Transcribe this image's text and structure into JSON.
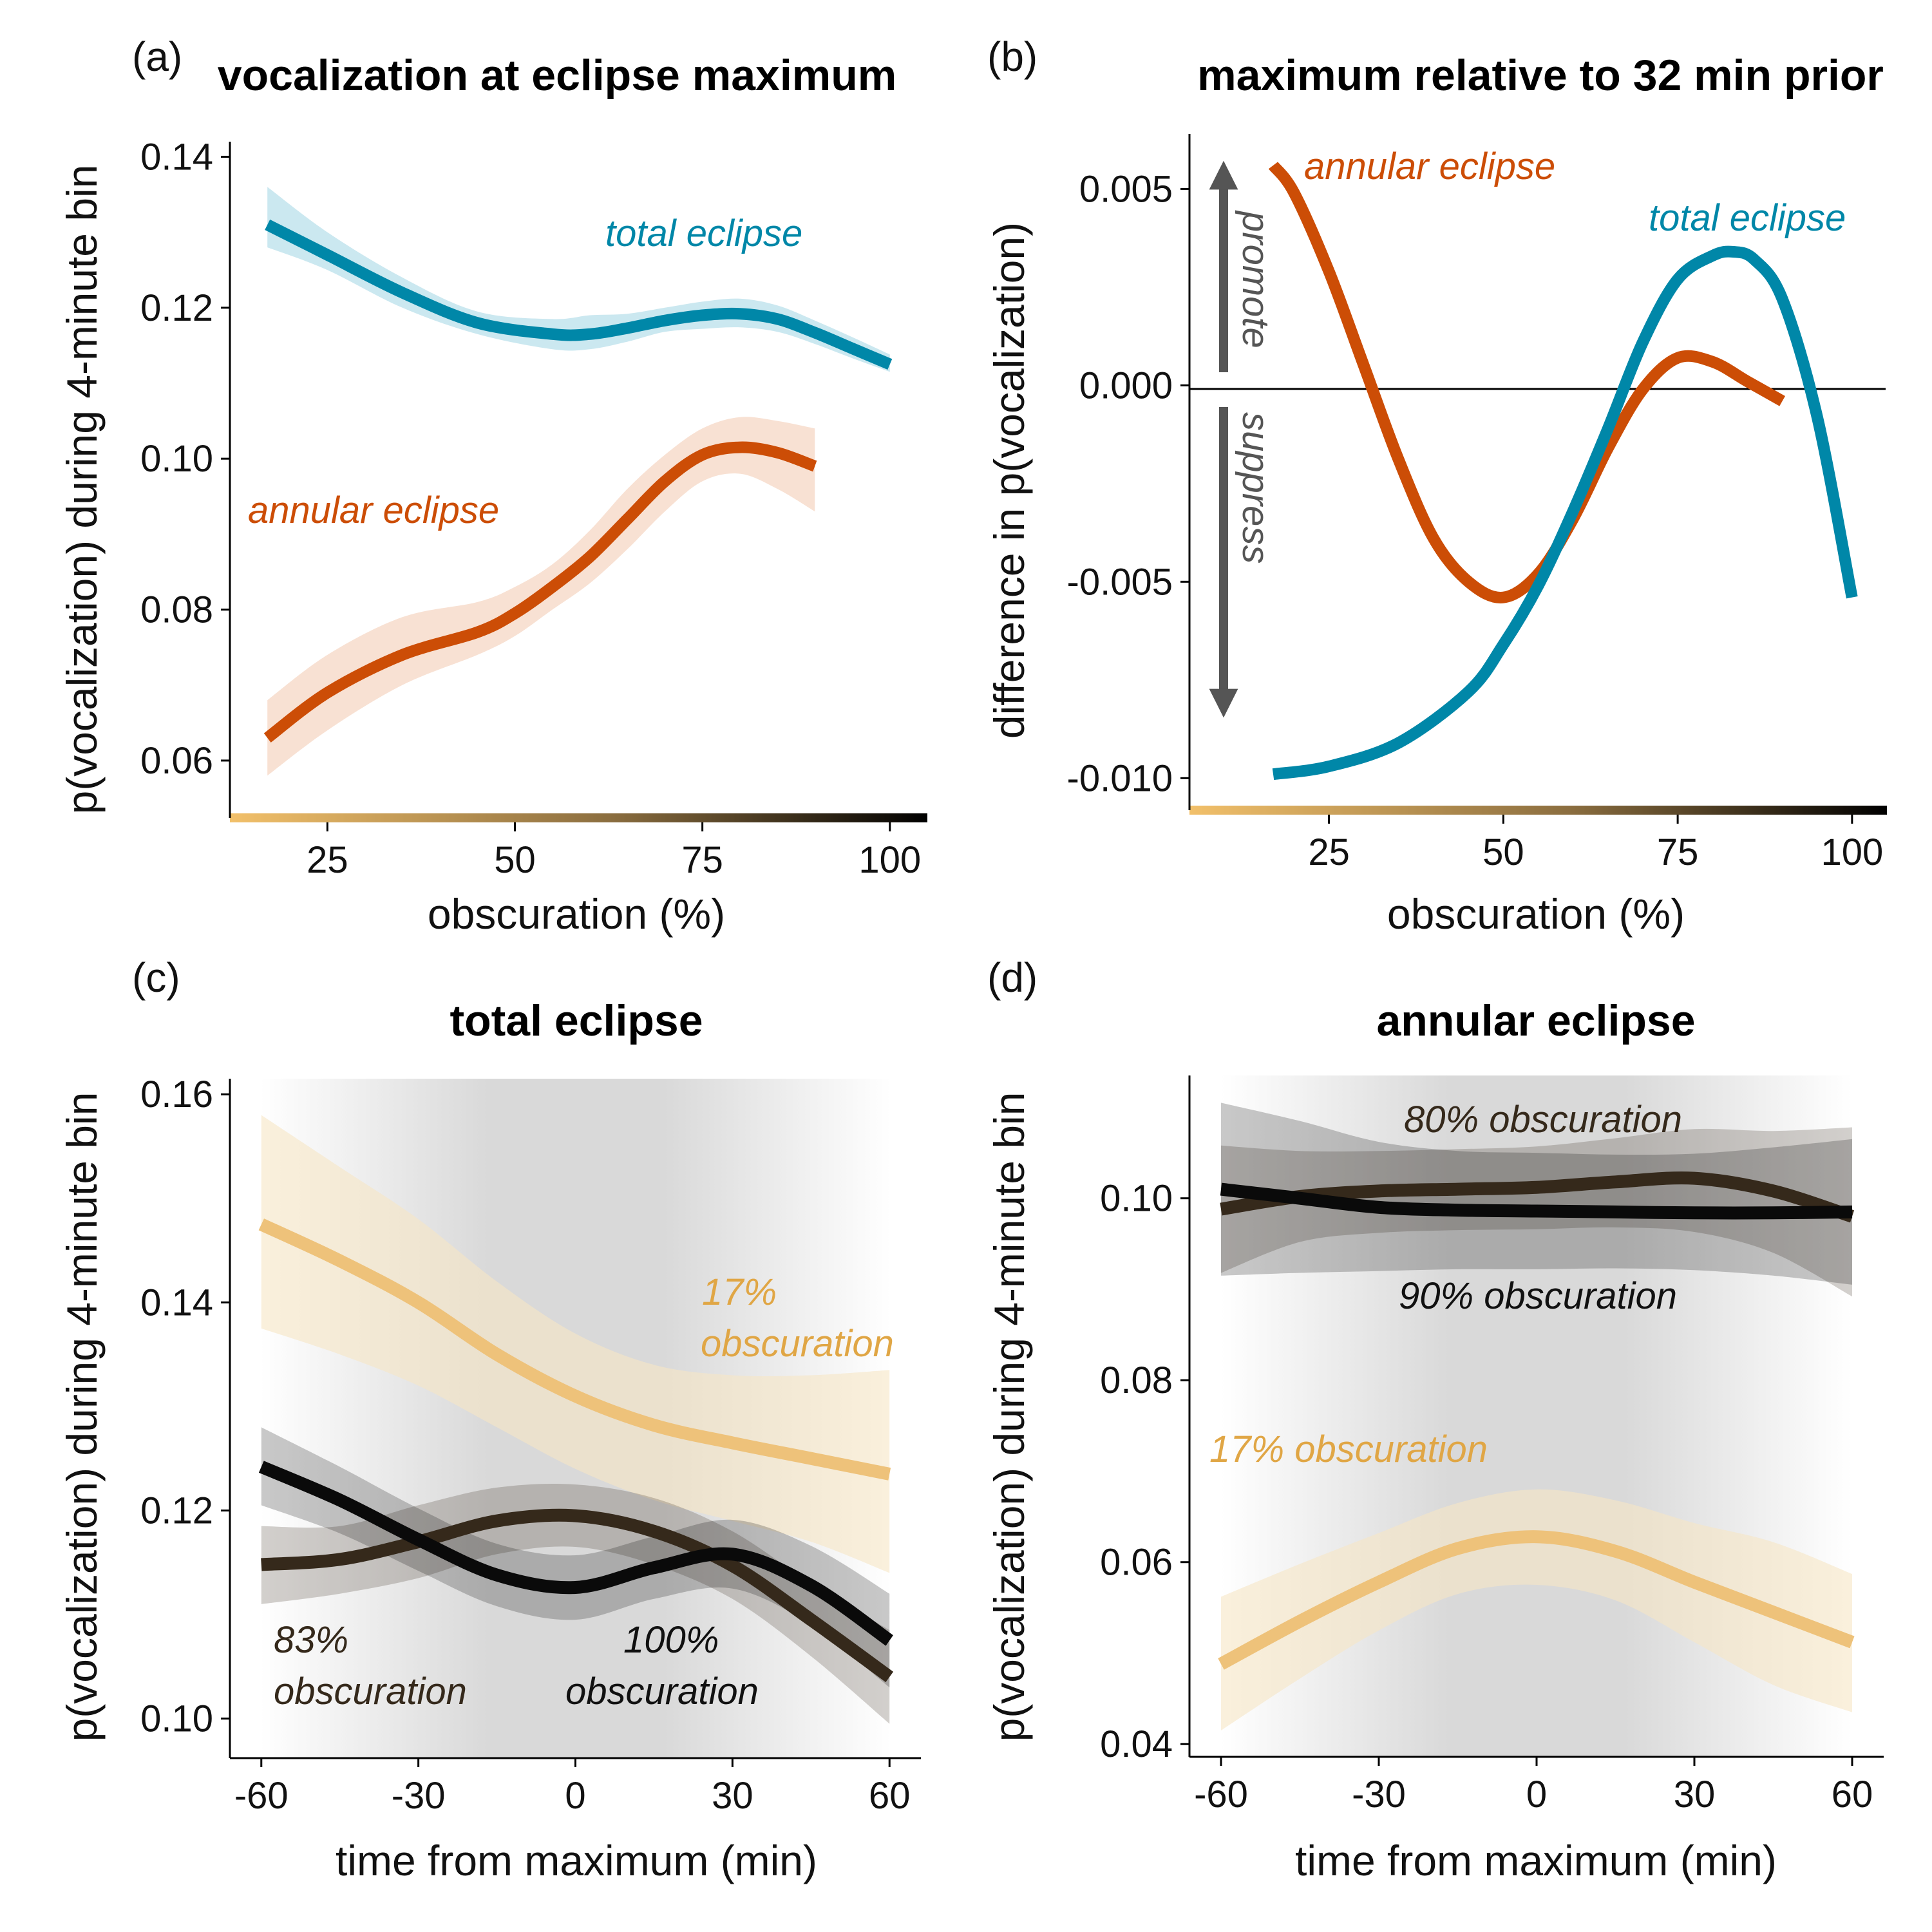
{
  "chart_data": [
    {
      "panel": "(a)",
      "type": "line",
      "title": "vocalization at eclipse maximum",
      "xlabel": "obscuration (%)",
      "ylabel": "p(vocalization) during 4-minute bin",
      "xlim": [
        12,
        105
      ],
      "ylim": [
        0.053,
        0.142
      ],
      "xticks": [
        "25",
        "50",
        "75",
        "100"
      ],
      "yticks": [
        "0.06",
        "0.08",
        "0.10",
        "0.12",
        "0.14"
      ],
      "x_color_scale": [
        "#f2c06a",
        "#000000"
      ],
      "grid": false,
      "series": [
        {
          "name": "total eclipse",
          "color": "#0087a8",
          "band_color": "#a9d8e6",
          "x": [
            17,
            25,
            35,
            45,
            55,
            60,
            65,
            70,
            75,
            80,
            85,
            90,
            95,
            100
          ],
          "y": [
            0.131,
            0.127,
            0.122,
            0.118,
            0.1165,
            0.1165,
            0.1173,
            0.1183,
            0.119,
            0.1192,
            0.1185,
            0.1167,
            0.1146,
            0.1125
          ],
          "lower": [
            0.128,
            0.125,
            0.12,
            0.1165,
            0.1145,
            0.1145,
            0.1155,
            0.1168,
            0.1172,
            0.1174,
            0.1168,
            0.1152,
            0.1133,
            0.1115
          ],
          "upper": [
            0.136,
            0.13,
            0.124,
            0.1195,
            0.1185,
            0.119,
            0.1192,
            0.12,
            0.1208,
            0.1212,
            0.1203,
            0.1183,
            0.1161,
            0.1138
          ]
        },
        {
          "name": "annular eclipse",
          "color": "#cc4d06",
          "band_color": "#f4cdb6",
          "x": [
            17,
            25,
            35,
            45,
            50,
            55,
            60,
            65,
            70,
            75,
            80,
            85,
            90
          ],
          "y": [
            0.063,
            0.069,
            0.074,
            0.077,
            0.0795,
            0.083,
            0.087,
            0.092,
            0.097,
            0.1005,
            0.1015,
            0.1008,
            0.099
          ],
          "lower": [
            0.058,
            0.064,
            0.07,
            0.074,
            0.0765,
            0.08,
            0.0835,
            0.088,
            0.093,
            0.097,
            0.098,
            0.096,
            0.093
          ],
          "upper": [
            0.068,
            0.074,
            0.079,
            0.081,
            0.083,
            0.086,
            0.0905,
            0.096,
            0.1005,
            0.104,
            0.1055,
            0.105,
            0.104
          ]
        }
      ]
    },
    {
      "panel": "(b)",
      "type": "line",
      "title": "maximum relative to 32 min prior",
      "xlabel": "obscuration (%)",
      "ylabel": "difference in p(vocalization)",
      "xlim": [
        5,
        105
      ],
      "ylim": [
        -0.0107,
        0.0064
      ],
      "xticks": [
        "25",
        "50",
        "75",
        "100"
      ],
      "yticks": [
        "-0.010",
        "-0.005",
        "0.000",
        "0.005"
      ],
      "x_color_scale": [
        "#f2c06a",
        "#000000"
      ],
      "reference_line": 0.0,
      "annotations": [
        "promote",
        "suppress"
      ],
      "grid": false,
      "series": [
        {
          "name": "annular eclipse",
          "color": "#cc4d06",
          "x": [
            17,
            20,
            25,
            30,
            35,
            40,
            45,
            50,
            55,
            60,
            65,
            70,
            75,
            80,
            85,
            90
          ],
          "y": [
            0.0056,
            0.0049,
            0.0029,
            0.0005,
            -0.0019,
            -0.0039,
            -0.005,
            -0.0054,
            -0.0048,
            -0.0034,
            -0.0016,
            -0.0001,
            0.0007,
            0.0006,
            0.0001,
            -0.0004
          ]
        },
        {
          "name": "total eclipse",
          "color": "#0087a8",
          "x": [
            17,
            25,
            35,
            45,
            50,
            55,
            60,
            65,
            70,
            75,
            80,
            83,
            86,
            90,
            95,
            100
          ],
          "y": [
            -0.0099,
            -0.0097,
            -0.0091,
            -0.0078,
            -0.0066,
            -0.0051,
            -0.0032,
            -0.0011,
            0.0011,
            0.0027,
            0.0033,
            0.0034,
            0.0032,
            0.0022,
            -0.0008,
            -0.0054
          ]
        }
      ]
    },
    {
      "panel": "(c)",
      "type": "line",
      "title": "total eclipse",
      "xlabel": "time from maximum (min)",
      "ylabel": "p(vocalization) during 4-minute bin",
      "xlim": [
        -66,
        66
      ],
      "ylim": [
        0.0962,
        0.1615
      ],
      "xticks": [
        "-60",
        "-30",
        "0",
        "30",
        "60"
      ],
      "yticks": [
        "0.10",
        "0.12",
        "0.14",
        "0.16"
      ],
      "background": "grey shading darkest near maximum",
      "grid": false,
      "series": [
        {
          "name": "17% obscuration",
          "color": "#eec27a",
          "band_color": "#f7e6c5",
          "x": [
            -60,
            -45,
            -30,
            -15,
            0,
            15,
            30,
            45,
            60
          ],
          "y": [
            0.1475,
            0.144,
            0.14,
            0.135,
            0.131,
            0.1282,
            0.1265,
            0.125,
            0.1235
          ],
          "lower": [
            0.1375,
            0.135,
            0.132,
            0.128,
            0.124,
            0.121,
            0.119,
            0.117,
            0.114
          ],
          "upper": [
            0.158,
            0.153,
            0.148,
            0.142,
            0.137,
            0.134,
            0.133,
            0.133,
            0.1335
          ]
        },
        {
          "name": "83% obscuration",
          "color": "#35291b",
          "x": [
            -60,
            -45,
            -30,
            -15,
            0,
            15,
            30,
            45,
            60
          ],
          "y": [
            0.1148,
            0.1153,
            0.117,
            0.119,
            0.1195,
            0.118,
            0.1147,
            0.1095,
            0.104
          ],
          "lower": [
            0.111,
            0.112,
            0.1135,
            0.1158,
            0.1165,
            0.1148,
            0.1115,
            0.106,
            0.0995
          ],
          "upper": [
            0.1185,
            0.1185,
            0.1205,
            0.1222,
            0.1225,
            0.1212,
            0.118,
            0.113,
            0.1085
          ]
        },
        {
          "name": "100% obscuration",
          "color": "#0a0a0a",
          "x": [
            -60,
            -45,
            -30,
            -15,
            0,
            15,
            30,
            45,
            60
          ],
          "y": [
            0.1242,
            0.121,
            0.1172,
            0.1138,
            0.1126,
            0.1145,
            0.1158,
            0.1128,
            0.1075
          ],
          "lower": [
            0.1205,
            0.1178,
            0.1142,
            0.1108,
            0.1095,
            0.1115,
            0.1125,
            0.109,
            0.103
          ],
          "upper": [
            0.128,
            0.1242,
            0.1202,
            0.1168,
            0.1157,
            0.1175,
            0.1191,
            0.1166,
            0.112
          ]
        }
      ],
      "labels": {
        "s17_line1": "17%",
        "s17_line2": "obscuration",
        "s83_line1": "83%",
        "s83_line2": "obscuration",
        "s100_line1": "100%",
        "s100_line2": "obscuration"
      }
    },
    {
      "panel": "(d)",
      "type": "line",
      "title": "annular eclipse",
      "xlabel": "time from maximum (min)",
      "ylabel": "p(vocalization) during 4-minute bin",
      "xlim": [
        -66,
        66
      ],
      "ylim": [
        0.0386,
        0.1135
      ],
      "xticks": [
        "-60",
        "-30",
        "0",
        "30",
        "60"
      ],
      "yticks": [
        "0.04",
        "0.06",
        "0.08",
        "0.10"
      ],
      "background": "grey shading darkest near maximum",
      "grid": false,
      "series": [
        {
          "name": "17% obscuration",
          "color": "#eec27a",
          "band_color": "#f7e6c5",
          "x": [
            -60,
            -45,
            -30,
            -15,
            0,
            15,
            30,
            45,
            60
          ],
          "y": [
            0.0488,
            0.0535,
            0.0578,
            0.0615,
            0.0628,
            0.0612,
            0.0578,
            0.0545,
            0.0512
          ],
          "lower": [
            0.0415,
            0.0472,
            0.0525,
            0.0565,
            0.0575,
            0.0558,
            0.0512,
            0.0465,
            0.0435
          ],
          "upper": [
            0.0562,
            0.0598,
            0.0632,
            0.0665,
            0.068,
            0.0668,
            0.0643,
            0.0622,
            0.0587
          ]
        },
        {
          "name": "80% obscuration",
          "color": "#35291b",
          "x": [
            -60,
            -45,
            -30,
            -15,
            0,
            15,
            30,
            45,
            60
          ],
          "y": [
            0.0988,
            0.1002,
            0.1008,
            0.101,
            0.1012,
            0.1018,
            0.1022,
            0.1008,
            0.098
          ],
          "lower": [
            0.0918,
            0.0952,
            0.0962,
            0.0965,
            0.0966,
            0.0968,
            0.0963,
            0.094,
            0.0892
          ],
          "upper": [
            0.1058,
            0.1052,
            0.1052,
            0.1054,
            0.1057,
            0.1066,
            0.1076,
            0.1074,
            0.1078
          ]
        },
        {
          "name": "90% obscuration",
          "color": "#0a0a0a",
          "x": [
            -60,
            -45,
            -30,
            -15,
            0,
            15,
            30,
            45,
            60
          ],
          "y": [
            0.101,
            0.1,
            0.099,
            0.0987,
            0.0986,
            0.0985,
            0.0984,
            0.0984,
            0.0985
          ],
          "lower": [
            0.0915,
            0.0918,
            0.092,
            0.0922,
            0.0922,
            0.0923,
            0.0921,
            0.0915,
            0.0905
          ],
          "upper": [
            0.1105,
            0.1085,
            0.1062,
            0.1052,
            0.105,
            0.1048,
            0.1049,
            0.1056,
            0.1065
          ]
        }
      ],
      "labels": {
        "s17": "17% obscuration",
        "s80": "80% obscuration",
        "s90": "90% obscuration"
      }
    }
  ]
}
